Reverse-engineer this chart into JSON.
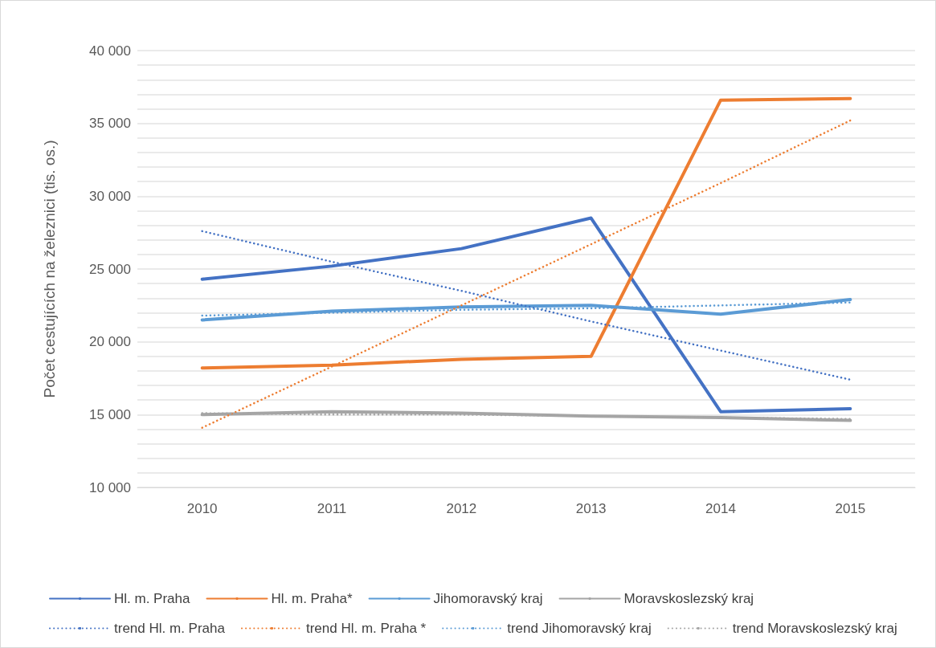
{
  "chart_data": {
    "type": "line",
    "ylabel": "Počet cestujících na železnici (tis. os.)",
    "categories": [
      "2010",
      "2011",
      "2012",
      "2013",
      "2014",
      "2015"
    ],
    "series": [
      {
        "name": "Hl. m. Praha",
        "color": "#4472c4",
        "line_style": "solid",
        "values": [
          24300,
          25200,
          26400,
          28500,
          15200,
          15400
        ]
      },
      {
        "name": "Hl. m. Praha*",
        "color": "#ed7d31",
        "line_style": "solid",
        "values": [
          18200,
          18400,
          18800,
          19000,
          36600,
          36700
        ]
      },
      {
        "name": "Jihomoravský kraj",
        "color": "#5b9bd5",
        "line_style": "solid",
        "values": [
          21500,
          22100,
          22400,
          22500,
          21900,
          22900
        ]
      },
      {
        "name": "Moravskoslezský kraj",
        "color": "#a5a5a5",
        "line_style": "solid",
        "values": [
          15000,
          15200,
          15100,
          14900,
          14800,
          14600
        ]
      },
      {
        "name": "trend Hl. m. Praha",
        "color": "#4472c4",
        "line_style": "dotted",
        "values": [
          27600,
          25500,
          23500,
          21400,
          19400,
          17400
        ]
      },
      {
        "name": "trend Hl. m. Praha *",
        "color": "#ed7d31",
        "line_style": "dotted",
        "values": [
          14100,
          18300,
          22500,
          26700,
          30900,
          35200
        ]
      },
      {
        "name": "trend Jihomoravský kraj",
        "color": "#5b9bd5",
        "line_style": "dotted",
        "values": [
          21800,
          22000,
          22200,
          22300,
          22500,
          22700
        ]
      },
      {
        "name": "trend Moravskoslezský kraj",
        "color": "#a5a5a5",
        "line_style": "dotted",
        "values": [
          15100,
          15000,
          15000,
          14900,
          14800,
          14700
        ]
      }
    ],
    "ylim": [
      10000,
      40000
    ],
    "yticks": [
      {
        "value": 10000,
        "label": "10 000"
      },
      {
        "value": 11000,
        "label": null
      },
      {
        "value": 12000,
        "label": null
      },
      {
        "value": 13000,
        "label": null
      },
      {
        "value": 14000,
        "label": null
      },
      {
        "value": 15000,
        "label": "15 000"
      },
      {
        "value": 16000,
        "label": null
      },
      {
        "value": 17000,
        "label": null
      },
      {
        "value": 18000,
        "label": null
      },
      {
        "value": 19000,
        "label": null
      },
      {
        "value": 20000,
        "label": "20 000"
      },
      {
        "value": 21000,
        "label": null
      },
      {
        "value": 22000,
        "label": null
      },
      {
        "value": 23000,
        "label": null
      },
      {
        "value": 24000,
        "label": null
      },
      {
        "value": 25000,
        "label": "25 000"
      },
      {
        "value": 26000,
        "label": null
      },
      {
        "value": 27000,
        "label": null
      },
      {
        "value": 28000,
        "label": null
      },
      {
        "value": 29000,
        "label": null
      },
      {
        "value": 30000,
        "label": "30 000"
      },
      {
        "value": 31000,
        "label": null
      },
      {
        "value": 32000,
        "label": null
      },
      {
        "value": 33000,
        "label": null
      },
      {
        "value": 34000,
        "label": null
      },
      {
        "value": 35000,
        "label": "35 000"
      },
      {
        "value": 36000,
        "label": null
      },
      {
        "value": 37000,
        "label": null
      },
      {
        "value": 38000,
        "label": null
      },
      {
        "value": 39000,
        "label": null
      },
      {
        "value": 40000,
        "label": "40 000"
      }
    ],
    "grid": "y",
    "legend": "bottom",
    "marker": "none"
  }
}
